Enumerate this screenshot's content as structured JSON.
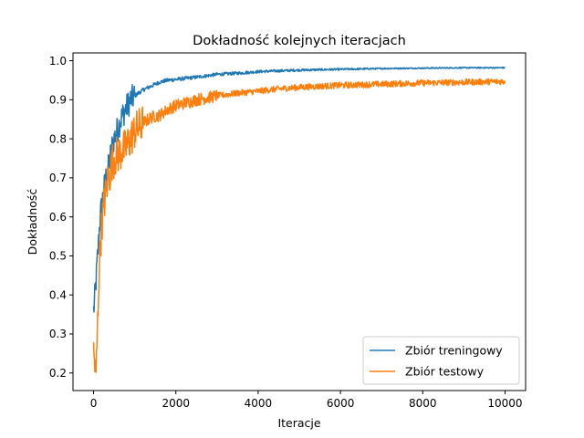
{
  "chart_data": {
    "type": "line",
    "title": "Dokładność kolejnych iteracjach",
    "xlabel": "Iteracje",
    "ylabel": "Dokładność",
    "xlim": [
      -500,
      10500
    ],
    "ylim": [
      0.155,
      1.02
    ],
    "xticks": [
      0,
      2000,
      4000,
      6000,
      8000,
      10000
    ],
    "yticks": [
      0.2,
      0.3,
      0.4,
      0.5,
      0.6,
      0.7,
      0.8,
      0.9,
      1.0
    ],
    "xtick_labels": [
      "0",
      "2000",
      "4000",
      "6000",
      "8000",
      "10000"
    ],
    "ytick_labels": [
      "0.2",
      "0.3",
      "0.4",
      "0.5",
      "0.6",
      "0.7",
      "0.8",
      "0.9",
      "1.0"
    ],
    "grid": false,
    "legend_position": "lower-right",
    "series": [
      {
        "name": "Zbiór treningowy",
        "color": "#1f77b4",
        "points": [
          [
            0,
            0.36
          ],
          [
            20,
            0.38
          ],
          [
            50,
            0.42
          ],
          [
            80,
            0.47
          ],
          [
            100,
            0.5
          ],
          [
            130,
            0.55
          ],
          [
            160,
            0.6
          ],
          [
            200,
            0.63
          ],
          [
            250,
            0.67
          ],
          [
            300,
            0.7
          ],
          [
            350,
            0.72
          ],
          [
            400,
            0.75
          ],
          [
            450,
            0.78
          ],
          [
            500,
            0.8
          ],
          [
            600,
            0.83
          ],
          [
            700,
            0.86
          ],
          [
            800,
            0.88
          ],
          [
            900,
            0.9
          ],
          [
            1000,
            0.91
          ],
          [
            1200,
            0.925
          ],
          [
            1400,
            0.935
          ],
          [
            1600,
            0.945
          ],
          [
            1800,
            0.95
          ],
          [
            2000,
            0.952
          ],
          [
            2500,
            0.958
          ],
          [
            3000,
            0.965
          ],
          [
            3500,
            0.968
          ],
          [
            4000,
            0.972
          ],
          [
            4500,
            0.974
          ],
          [
            5000,
            0.976
          ],
          [
            6000,
            0.978
          ],
          [
            7000,
            0.98
          ],
          [
            8000,
            0.981
          ],
          [
            9000,
            0.982
          ],
          [
            10000,
            0.982
          ]
        ]
      },
      {
        "name": "Zbiór testowy",
        "color": "#ff7f0e",
        "points": [
          [
            0,
            0.25
          ],
          [
            30,
            0.22
          ],
          [
            60,
            0.19
          ],
          [
            80,
            0.27
          ],
          [
            100,
            0.33
          ],
          [
            130,
            0.45
          ],
          [
            160,
            0.52
          ],
          [
            200,
            0.58
          ],
          [
            250,
            0.63
          ],
          [
            300,
            0.66
          ],
          [
            350,
            0.7
          ],
          [
            400,
            0.71
          ],
          [
            450,
            0.74
          ],
          [
            500,
            0.75
          ],
          [
            600,
            0.76
          ],
          [
            700,
            0.77
          ],
          [
            800,
            0.78
          ],
          [
            900,
            0.8
          ],
          [
            1000,
            0.82
          ],
          [
            1200,
            0.84
          ],
          [
            1400,
            0.855
          ],
          [
            1600,
            0.86
          ],
          [
            1800,
            0.875
          ],
          [
            2000,
            0.885
          ],
          [
            2500,
            0.9
          ],
          [
            3000,
            0.91
          ],
          [
            3500,
            0.917
          ],
          [
            4000,
            0.922
          ],
          [
            4500,
            0.928
          ],
          [
            5000,
            0.932
          ],
          [
            6000,
            0.937
          ],
          [
            7000,
            0.94
          ],
          [
            8000,
            0.943
          ],
          [
            9000,
            0.945
          ],
          [
            10000,
            0.947
          ]
        ]
      }
    ]
  }
}
